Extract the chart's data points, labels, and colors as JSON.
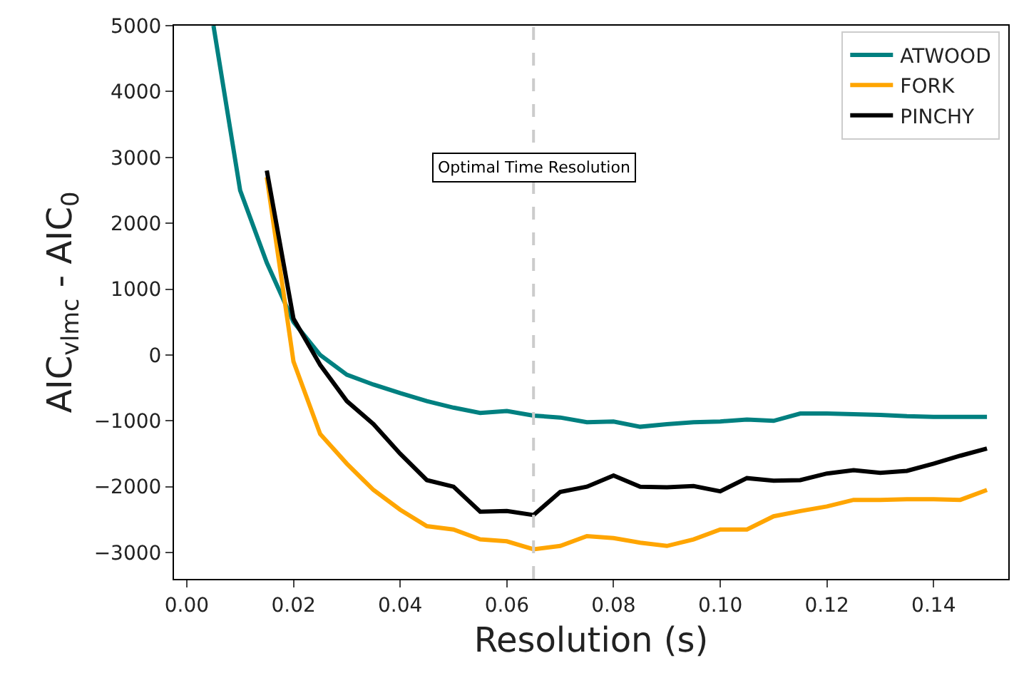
{
  "chart_data": {
    "type": "line",
    "xlabel": "Resolution (s)",
    "ylabel": "AIC$_{vlmc}$ - AIC$_{0}$",
    "x": [
      0.005,
      0.01,
      0.015,
      0.02,
      0.025,
      0.03,
      0.035,
      0.04,
      0.045,
      0.05,
      0.055,
      0.06,
      0.065,
      0.07,
      0.075,
      0.08,
      0.085,
      0.09,
      0.095,
      0.1,
      0.105,
      0.11,
      0.115,
      0.12,
      0.125,
      0.13,
      0.135,
      0.14,
      0.145,
      0.15
    ],
    "series": [
      {
        "name": "ATWOOD",
        "color": "#008080",
        "values": [
          5000,
          2500,
          1400,
          500,
          0,
          -300,
          -450,
          -580,
          -700,
          -800,
          -880,
          -850,
          -920,
          -950,
          -1020,
          -1010,
          -1090,
          -1050,
          -1020,
          -1010,
          -980,
          -1000,
          -890,
          -890,
          -900,
          -910,
          -930,
          -940,
          -940,
          -940
        ]
      },
      {
        "name": "FORK",
        "color": "#ffa500",
        "values": [
          null,
          null,
          2700,
          -100,
          -1200,
          -1650,
          -2050,
          -2350,
          -2600,
          -2650,
          -2800,
          -2830,
          -2950,
          -2900,
          -2750,
          -2780,
          -2850,
          -2900,
          -2800,
          -2650,
          -2650,
          -2450,
          -2370,
          -2300,
          -2200,
          -2200,
          -2190,
          -2190,
          -2200,
          -2050
        ]
      },
      {
        "name": "PINCHY",
        "color": "#000000",
        "values": [
          null,
          null,
          2800,
          550,
          -150,
          -700,
          -1050,
          -1500,
          -1900,
          -2000,
          -2380,
          -2370,
          -2430,
          -2080,
          -2000,
          -1830,
          -2000,
          -2010,
          -1990,
          -2070,
          -1870,
          -1910,
          -1900,
          -1800,
          -1750,
          -1790,
          -1760,
          -1650,
          -1530,
          -1420
        ]
      }
    ],
    "xlim": [
      -0.0024,
      0.154
    ],
    "ylim": [
      -3400,
      5000
    ],
    "xticks": [
      {
        "value": 0,
        "label": "0.00"
      },
      {
        "value": 0.02,
        "label": "0.02"
      },
      {
        "value": 0.04,
        "label": "0.04"
      },
      {
        "value": 0.06,
        "label": "0.06"
      },
      {
        "value": 0.08,
        "label": "0.08"
      },
      {
        "value": 0.1,
        "label": "0.10"
      },
      {
        "value": 0.12,
        "label": "0.12"
      },
      {
        "value": 0.14,
        "label": "0.14"
      }
    ],
    "yticks": [
      {
        "value": -3000,
        "label": "−3000"
      },
      {
        "value": -2000,
        "label": "−2000"
      },
      {
        "value": -1000,
        "label": "−1000"
      },
      0,
      1000,
      2000,
      3000,
      4000,
      5000
    ],
    "ref_lines": [
      {
        "axis": "x",
        "value": 0.065,
        "label": "Optimal Time Resolution",
        "color": "#cccccc",
        "line_style": "dashed"
      }
    ],
    "legend": "top right",
    "marker": "none",
    "line_style": "solid"
  }
}
